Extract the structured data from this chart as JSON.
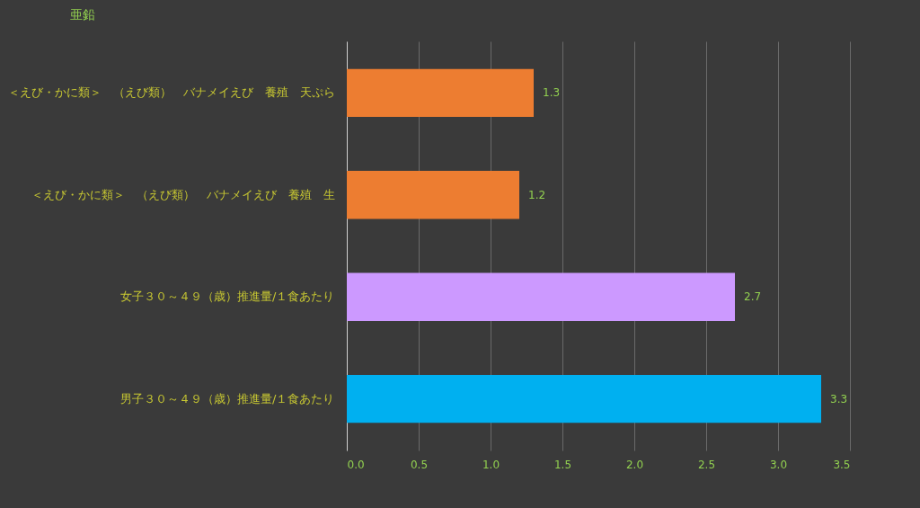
{
  "chart_data": {
    "type": "bar",
    "orientation": "horizontal",
    "title": "亜鉛",
    "categories": [
      "＜えび・かに類＞　（えび類）　バナメイえび　養殖　天ぷら",
      "＜えび・かに類＞　（えび類）　バナメイえび　養殖　生",
      "女子３０～４９（歳）推進量/１食あたり",
      "男子３０～４９（歳）推進量/１食あたり"
    ],
    "values": [
      1.3,
      1.2,
      2.7,
      3.3
    ],
    "colors": [
      "#ed7d31",
      "#ed7d31",
      "#cc99ff",
      "#00b0f0"
    ],
    "xlim": [
      0,
      3.5
    ],
    "xticks": [
      {
        "value": 0,
        "label": "0.0"
      },
      0.5,
      {
        "value": 1,
        "label": "1.0"
      },
      1.5,
      {
        "value": 2,
        "label": "2.0"
      },
      2.5,
      {
        "value": 3,
        "label": "3.0"
      },
      3.5
    ],
    "grid": "x",
    "data_labels": true
  }
}
